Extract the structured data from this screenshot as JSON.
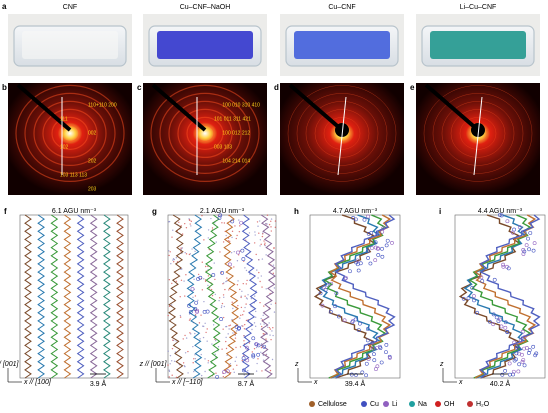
{
  "photos": [
    {
      "letter": "a",
      "title": "CNF"
    },
    {
      "letter": "",
      "title": "Cu–CNF–NaOH"
    },
    {
      "letter": "",
      "title": "Cu–CNF"
    },
    {
      "letter": "",
      "title": "Li–Cu–CNF"
    }
  ],
  "diffraction": [
    {
      "letter": "b",
      "labels": [
        "110+110 200",
        "111",
        "002",
        "102",
        "202",
        "103 113 113",
        "203"
      ]
    },
    {
      "letter": "c",
      "labels": [
        "100 010  310  410",
        "101 011  311  421",
        "100 012  212",
        "003  103",
        "104 214  014"
      ]
    },
    {
      "letter": "d",
      "labels": []
    },
    {
      "letter": "e",
      "labels": []
    }
  ],
  "simulations": [
    {
      "letter": "f",
      "density": "6.1 AGU nm⁻³",
      "z_axis": "z // [001]",
      "x_axis": "x // [100]",
      "spacing": "3.9 Å"
    },
    {
      "letter": "g",
      "density": "2.1 AGU nm⁻³",
      "z_axis": "z // [001]",
      "x_axis": "x // [−110]",
      "spacing": "8.7 Å"
    },
    {
      "letter": "h",
      "density": "4.7 AGU nm⁻³",
      "z_axis": "z",
      "x_axis": "x",
      "spacing": "39.4 Å"
    },
    {
      "letter": "i",
      "density": "4.4 AGU nm⁻³",
      "z_axis": "z",
      "x_axis": "x",
      "spacing": "40.2 Å"
    }
  ],
  "legend": [
    "Cellulose",
    "Cu",
    "Li",
    "Na",
    "OH",
    "H₂O"
  ]
}
